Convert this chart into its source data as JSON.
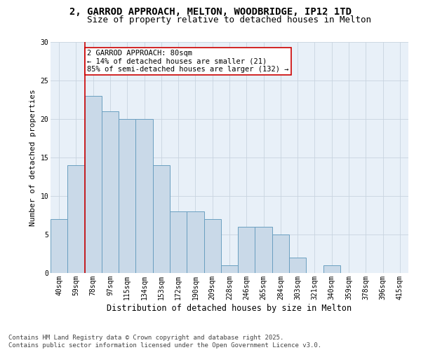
{
  "title": "2, GARROD APPROACH, MELTON, WOODBRIDGE, IP12 1TD",
  "subtitle": "Size of property relative to detached houses in Melton",
  "xlabel": "Distribution of detached houses by size in Melton",
  "ylabel": "Number of detached properties",
  "categories": [
    "40sqm",
    "59sqm",
    "78sqm",
    "97sqm",
    "115sqm",
    "134sqm",
    "153sqm",
    "172sqm",
    "190sqm",
    "209sqm",
    "228sqm",
    "246sqm",
    "265sqm",
    "284sqm",
    "303sqm",
    "321sqm",
    "340sqm",
    "359sqm",
    "378sqm",
    "396sqm",
    "415sqm"
  ],
  "values": [
    7,
    14,
    23,
    21,
    20,
    20,
    14,
    8,
    8,
    7,
    1,
    6,
    6,
    5,
    2,
    0,
    1,
    0,
    0,
    0,
    0
  ],
  "bar_color": "#c9d9e8",
  "bar_edge_color": "#6a9fc0",
  "subject_line_index": 2,
  "subject_line_color": "#cc0000",
  "annotation_text": "2 GARROD APPROACH: 80sqm\n← 14% of detached houses are smaller (21)\n85% of semi-detached houses are larger (132) →",
  "annotation_box_color": "#cc0000",
  "ylim": [
    0,
    30
  ],
  "yticks": [
    0,
    5,
    10,
    15,
    20,
    25,
    30
  ],
  "background_color": "#ffffff",
  "ax_background_color": "#e8f0f8",
  "grid_color": "#c8d4e0",
  "footer": "Contains HM Land Registry data © Crown copyright and database right 2025.\nContains public sector information licensed under the Open Government Licence v3.0.",
  "title_fontsize": 10,
  "subtitle_fontsize": 9,
  "xlabel_fontsize": 8.5,
  "ylabel_fontsize": 8,
  "tick_fontsize": 7,
  "annotation_fontsize": 7.5,
  "footer_fontsize": 6.5
}
